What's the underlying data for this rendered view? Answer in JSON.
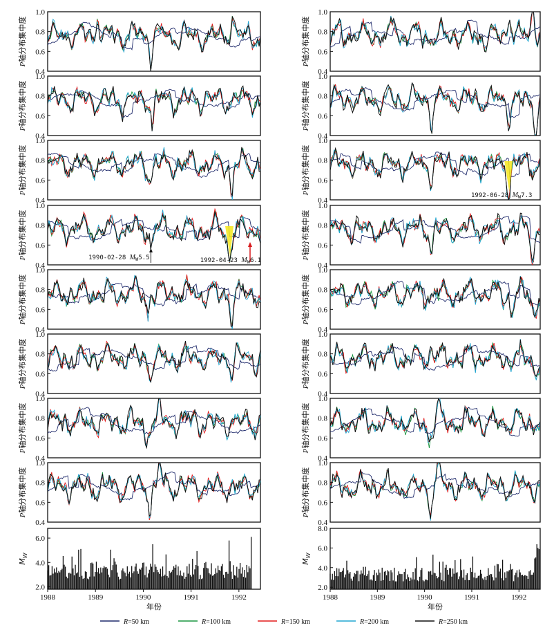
{
  "chart_data": {
    "type": "line",
    "ylabel_p": "P轴分布集中度",
    "ylabel_p_italic": "P",
    "ylabel_p_rest": "轴分布集中度",
    "ylabel_m_main": "M",
    "ylabel_m_sub": "W",
    "xlabel": "年份",
    "x_range": [
      1988.0,
      1992.45
    ],
    "x_ticks": [
      "1988",
      "1989",
      "1990",
      "1991",
      "1992"
    ],
    "p_ylim": [
      0.4,
      1.0
    ],
    "p_yticks": [
      "0.4",
      "0.6",
      "0.8",
      "1.0"
    ],
    "m_ylim_left": [
      1.8,
      6.8
    ],
    "m_yticks_left": [
      "2.0",
      "4.0",
      "6.0"
    ],
    "m_ylim_right": [
      1.8,
      8.0
    ],
    "m_yticks_right": [
      "2.0",
      "4.0",
      "6.0",
      "8.0"
    ],
    "series": [
      {
        "name": "R=50 km",
        "label_italic": "R",
        "label_rest": "=50 km",
        "color": "#1f2a6b"
      },
      {
        "name": "R=100 km",
        "label_italic": "R",
        "label_rest": "=100 km",
        "color": "#1a9641"
      },
      {
        "name": "R=150 km",
        "label_italic": "R",
        "label_rest": "=150 km",
        "color": "#e31a1c"
      },
      {
        "name": "R=200 km",
        "label_italic": "R",
        "label_rest": "=200 km",
        "color": "#21a6d1"
      },
      {
        "name": "R=250 km",
        "label_italic": "R",
        "label_rest": "=250 km",
        "color": "#111111"
      }
    ],
    "annotations": [
      {
        "column": "left",
        "row": 3,
        "date": "1990-02-28",
        "mag": "5.5",
        "text_pre": "1990-02-28 ",
        "m": "M",
        "sub": "W",
        "text_post": "5.5",
        "x": 1990.16,
        "highlight": false
      },
      {
        "column": "left",
        "row": 3,
        "date": "1992-04-23",
        "mag": "6.1",
        "text_pre": "1992-04-23 ",
        "m": "M",
        "sub": "W",
        "text_post": "6.1",
        "x": 1991.8,
        "highlight": true
      },
      {
        "column": "right",
        "row": 2,
        "date": "1992-06-28",
        "mag": "7.3",
        "text_pre": "1992-06-28 ",
        "m": "M",
        "sub": "W",
        "text_post": "7.3",
        "x": 1991.78,
        "highlight": true
      }
    ],
    "notes": "Twelve P-axis concentration time series panels (8 per column) and one MW histogram per column; data values approximated from the image."
  }
}
